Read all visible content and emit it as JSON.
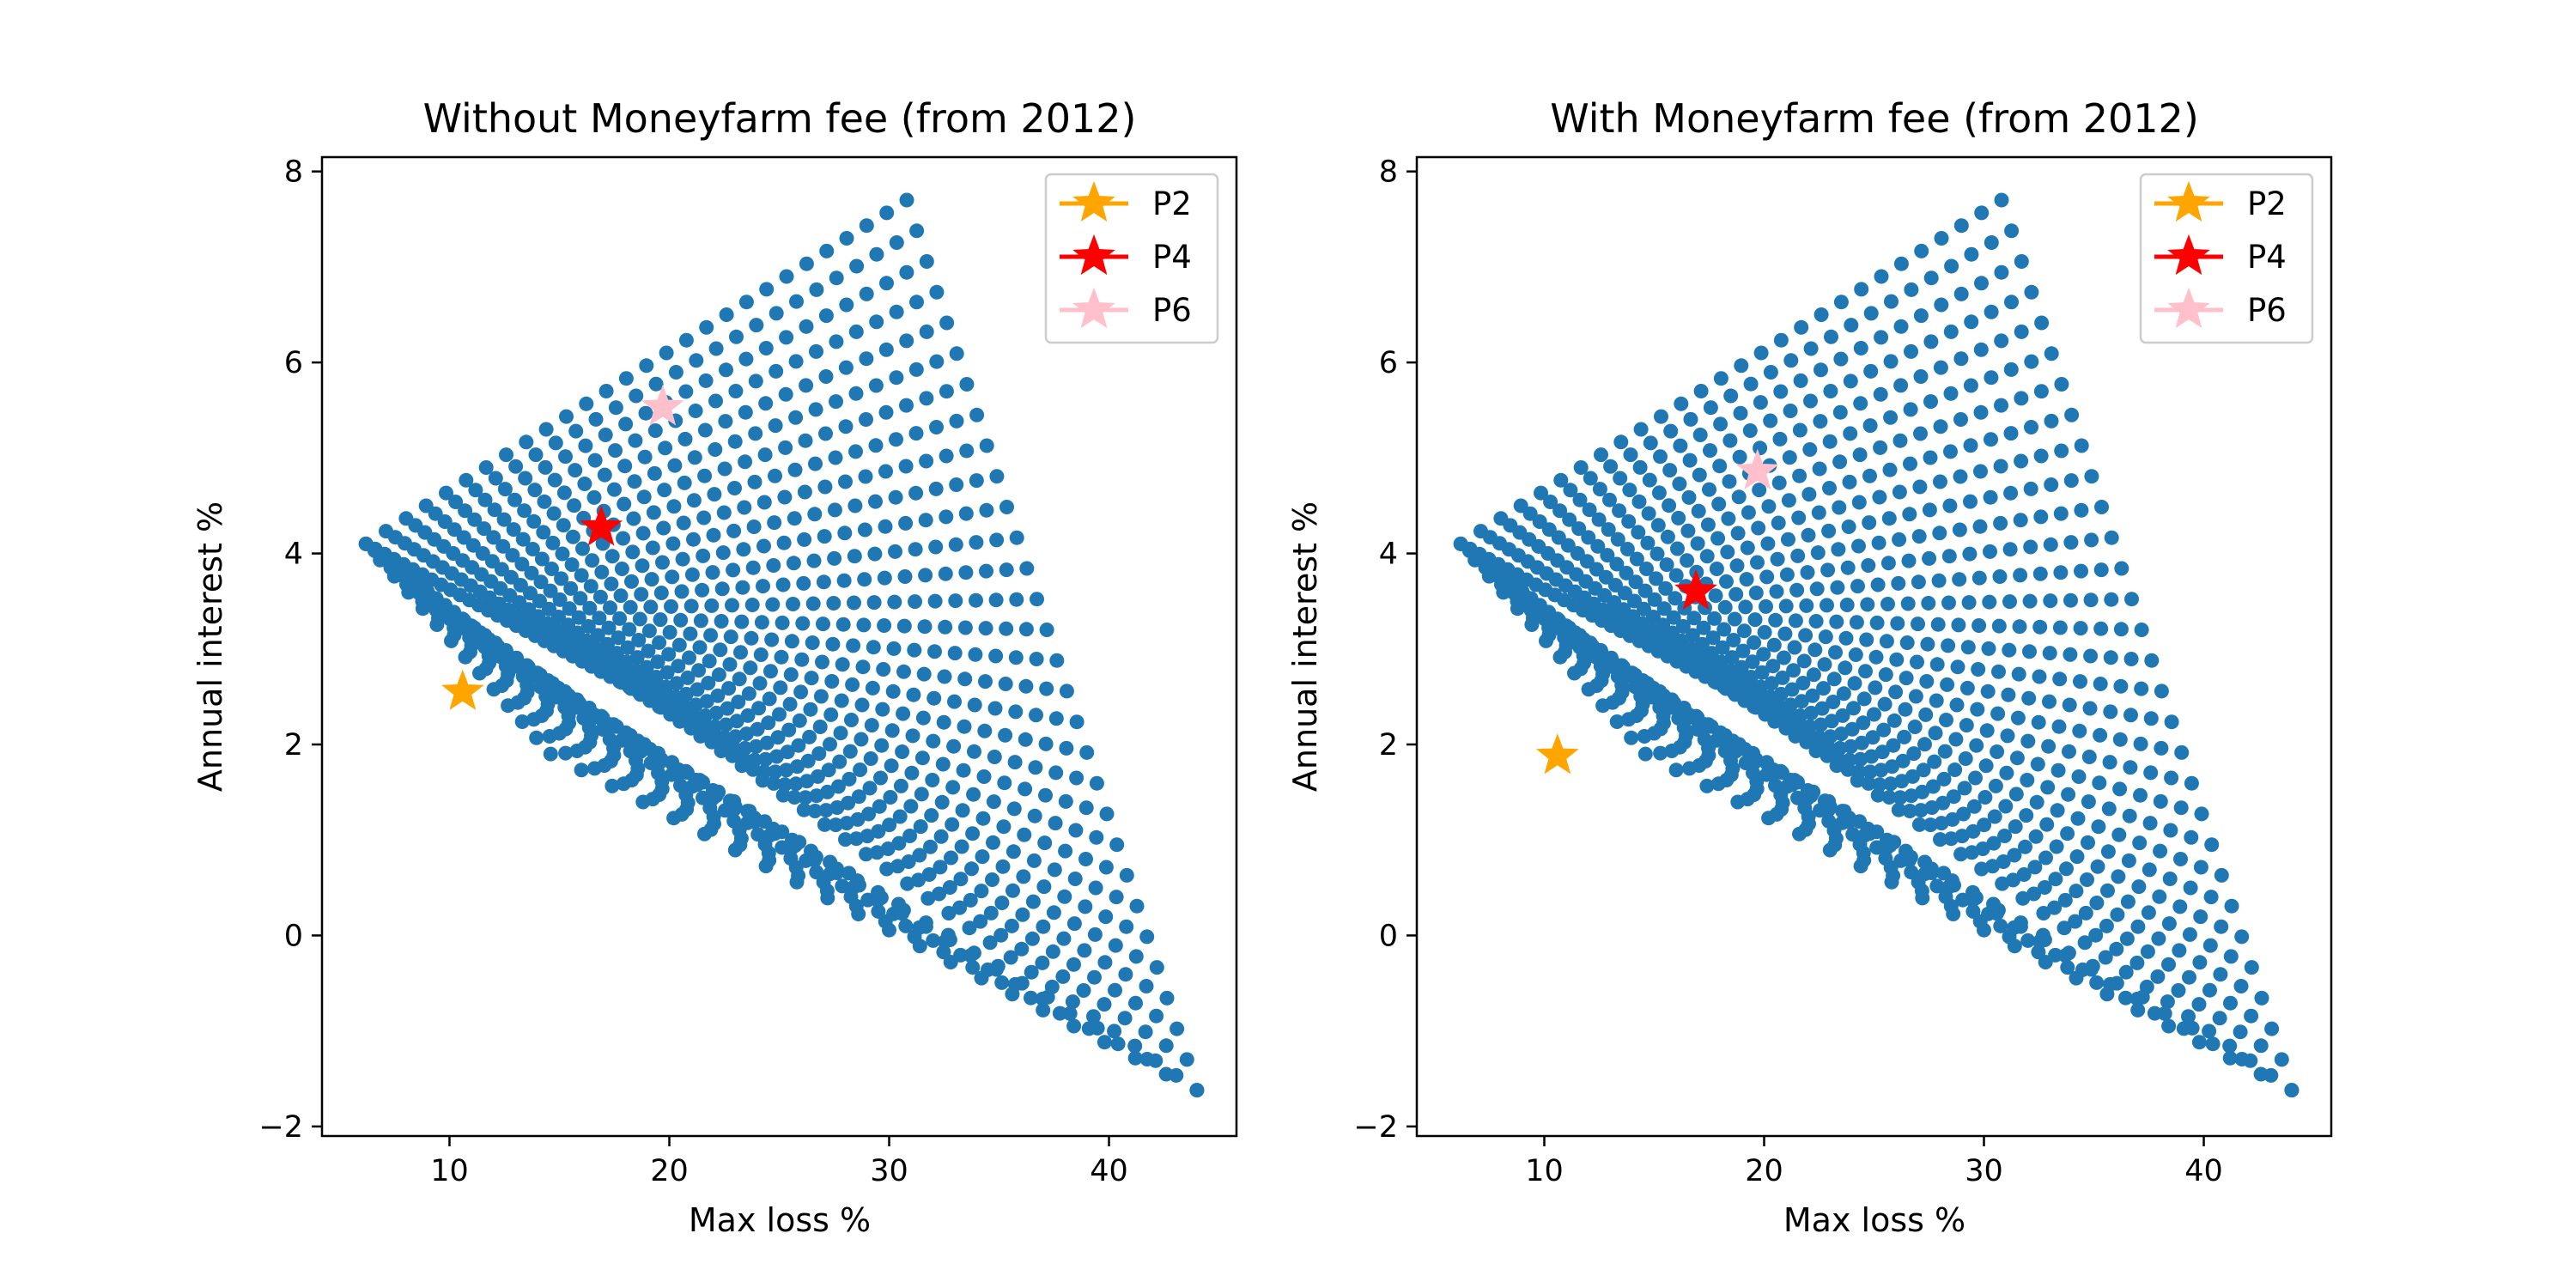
{
  "colors": {
    "scatter": "#1f77b4",
    "axes": "#000000",
    "legend_border": "#cccccc",
    "background": "#ffffff"
  },
  "chart_data": [
    {
      "type": "scatter",
      "title": "Without Moneyfarm fee (from 2012)",
      "xlabel": "Max loss %",
      "ylabel": "Annual interest %",
      "xlim": [
        4.2,
        45.8
      ],
      "ylim": [
        -2.1,
        8.15
      ],
      "xticks": [
        10,
        20,
        30,
        40
      ],
      "yticks": [
        -2,
        0,
        2,
        4,
        6,
        8
      ],
      "grid": false,
      "legend_position": "top-right",
      "fee_shift": 0,
      "cloud": {
        "description": "Grid of portfolio combinations; dense blue point cloud",
        "apex": [
          6.2,
          4.1
        ],
        "upper_end": [
          30.8,
          7.7
        ],
        "lower_end": [
          44.0,
          -1.62
        ],
        "inner_vertex": [
          18.6,
          2.55
        ]
      },
      "markers": [
        {
          "name": "P2",
          "x": 10.6,
          "y": 2.55,
          "color": "#ffa500"
        },
        {
          "name": "P4",
          "x": 16.9,
          "y": 4.27,
          "color": "#ff0000"
        },
        {
          "name": "P6",
          "x": 19.7,
          "y": 5.53,
          "color": "#ffc0cb"
        }
      ]
    },
    {
      "type": "scatter",
      "title": "With Moneyfarm fee (from 2012)",
      "xlabel": "Max loss %",
      "ylabel": "Annual interest %",
      "xlim": [
        4.2,
        45.8
      ],
      "ylim": [
        -2.1,
        8.15
      ],
      "xticks": [
        10,
        20,
        30,
        40
      ],
      "yticks": [
        -2,
        0,
        2,
        4,
        6,
        8
      ],
      "grid": false,
      "legend_position": "top-right",
      "fee_shift": 0,
      "cloud": {
        "description": "Grid of portfolio combinations; dense blue point cloud",
        "apex": [
          6.2,
          4.1
        ],
        "upper_end": [
          30.8,
          7.7
        ],
        "lower_end": [
          44.0,
          -1.62
        ],
        "inner_vertex": [
          18.6,
          2.55
        ]
      },
      "markers": [
        {
          "name": "P2",
          "x": 10.6,
          "y": 1.88,
          "color": "#ffa500"
        },
        {
          "name": "P4",
          "x": 16.9,
          "y": 3.6,
          "color": "#ff0000"
        },
        {
          "name": "P6",
          "x": 19.7,
          "y": 4.86,
          "color": "#ffc0cb"
        }
      ]
    }
  ]
}
